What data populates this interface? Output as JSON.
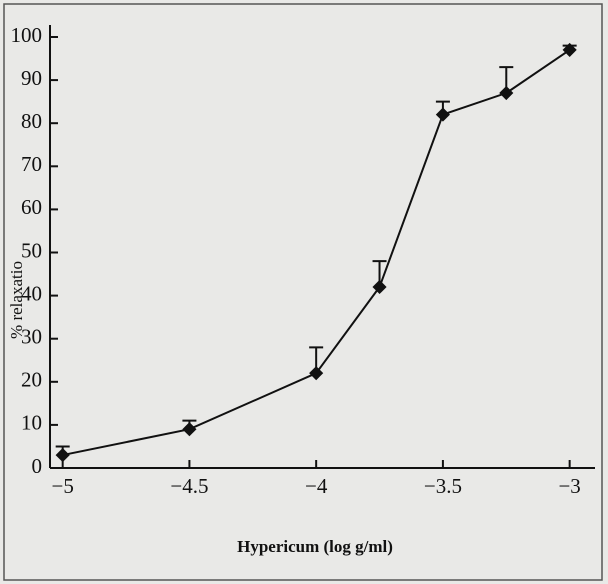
{
  "chart_data": {
    "type": "line",
    "x": [
      -5,
      -4.5,
      -4,
      -3.75,
      -3.5,
      -3.25,
      -3
    ],
    "values": [
      3,
      9,
      22,
      42,
      82,
      87,
      97
    ],
    "errors": [
      2,
      2,
      6,
      6,
      3,
      6,
      1
    ],
    "color": "#111111",
    "xlabel": "Hypericum (log g/ml)",
    "ylabel": "% relaxatio",
    "xlim": [
      -5.05,
      -2.9
    ],
    "xticks": [
      {
        "value": -5,
        "label": "−5"
      },
      {
        "value": -4.5,
        "label": "−4.5"
      },
      {
        "value": -4,
        "label": "−4"
      },
      {
        "value": -3.5,
        "label": "−3.5"
      },
      {
        "value": -3,
        "label": "−3"
      }
    ],
    "ylim": [
      0,
      100
    ],
    "yticks": [
      0,
      10,
      20,
      30,
      40,
      50,
      60,
      70,
      80,
      90,
      100
    ]
  }
}
